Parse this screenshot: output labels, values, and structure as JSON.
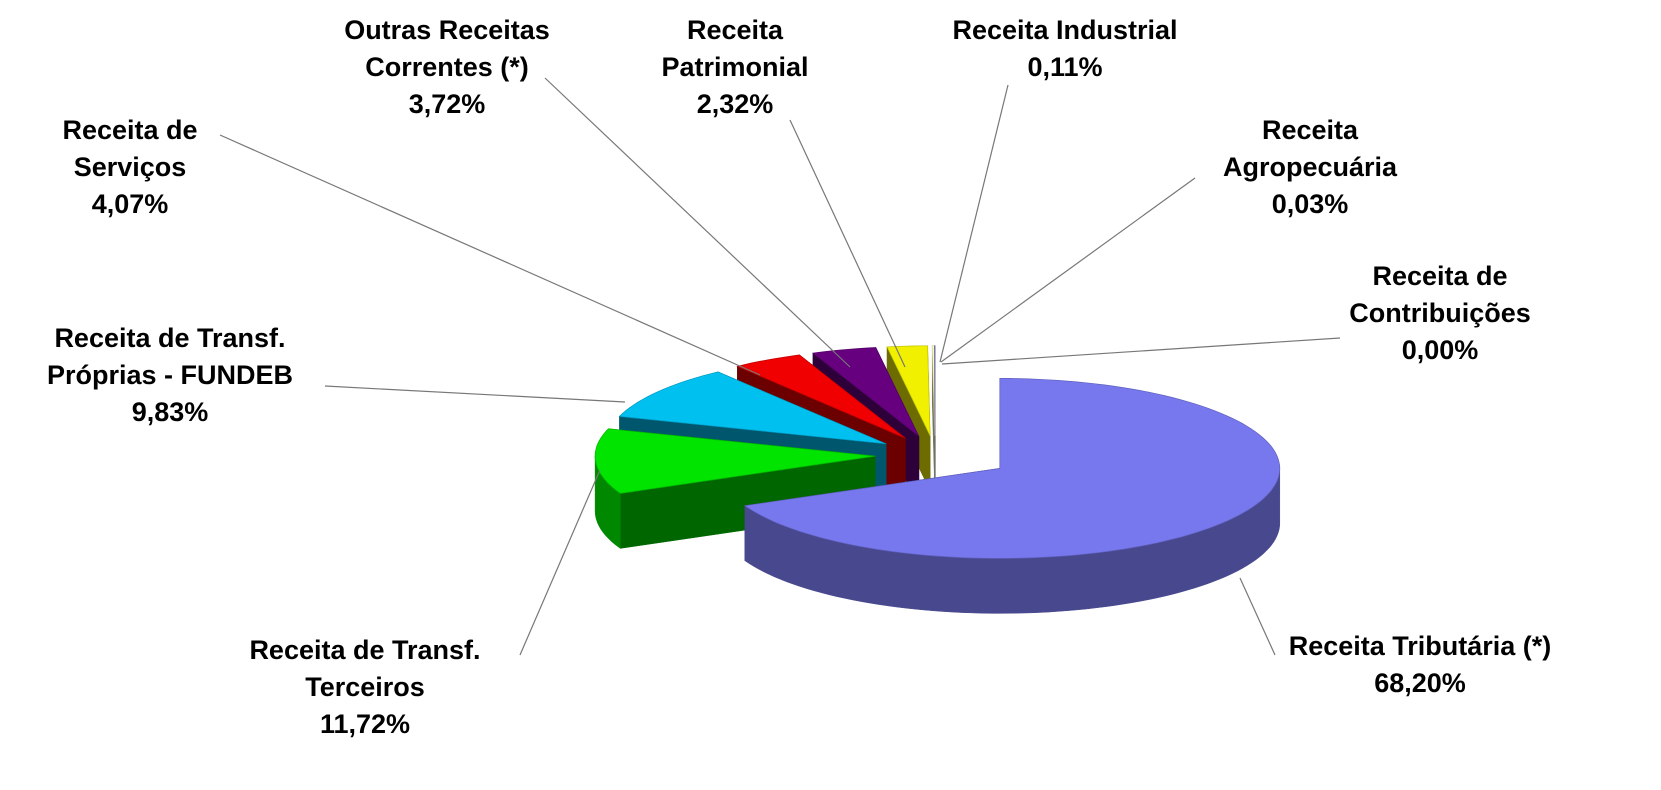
{
  "chart_data": {
    "type": "pie",
    "categories": [
      "Receita Tributária (*)",
      "Receita de Transf. Terceiros",
      "Receita de Transf. Próprias - FUNDEB",
      "Receita de Serviços",
      "Outras Receitas Correntes (*)",
      "Receita Patrimonial",
      "Receita Industrial",
      "Receita Agropecuária",
      "Receita de Contribuições"
    ],
    "values": [
      68.2,
      11.72,
      9.83,
      4.07,
      3.72,
      2.32,
      0.11,
      0.03,
      0.0
    ],
    "value_labels": [
      "68,20%",
      "11,72%",
      "9,83%",
      "4,07%",
      "3,72%",
      "2,32%",
      "0,11%",
      "0,03%",
      "0,00%"
    ],
    "colors": [
      "#7878ee",
      "#00e400",
      "#00c0f0",
      "#f00000",
      "#66007f",
      "#f0f000",
      "#ffffc0",
      "#8080ff",
      "#a0a0a0"
    ]
  }
}
